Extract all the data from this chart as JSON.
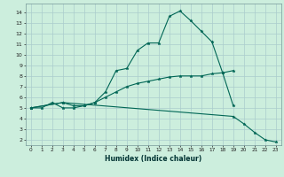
{
  "title": "",
  "xlabel": "Humidex (Indice chaleur)",
  "bg_color": "#cceedd",
  "grid_color": "#aacccc",
  "line_color": "#006655",
  "xlim": [
    -0.5,
    23.5
  ],
  "ylim": [
    1.5,
    14.8
  ],
  "xticks": [
    0,
    1,
    2,
    3,
    4,
    5,
    6,
    7,
    8,
    9,
    10,
    11,
    12,
    13,
    14,
    15,
    16,
    17,
    18,
    19,
    20,
    21,
    22,
    23
  ],
  "yticks": [
    2,
    3,
    4,
    5,
    6,
    7,
    8,
    9,
    10,
    11,
    12,
    13,
    14
  ],
  "line1_x": [
    0,
    1,
    2,
    3,
    4,
    5,
    6,
    7,
    8,
    9,
    10,
    11,
    12,
    13,
    14,
    15,
    16,
    17,
    18,
    19
  ],
  "line1_y": [
    5.0,
    5.0,
    5.5,
    5.0,
    5.0,
    5.2,
    5.5,
    6.5,
    8.5,
    8.7,
    10.4,
    11.1,
    11.1,
    13.6,
    14.1,
    13.2,
    12.2,
    11.2,
    8.3,
    5.2
  ],
  "line2_x": [
    0,
    3,
    4,
    5,
    6,
    7,
    8,
    9,
    10,
    11,
    12,
    13,
    14,
    15,
    16,
    17,
    18,
    19
  ],
  "line2_y": [
    5.0,
    5.5,
    5.2,
    5.2,
    5.5,
    6.0,
    6.5,
    7.0,
    7.3,
    7.5,
    7.7,
    7.9,
    8.0,
    8.0,
    8.0,
    8.2,
    8.3,
    8.5
  ],
  "line3_x": [
    0,
    3,
    19,
    20,
    21,
    22,
    23
  ],
  "line3_y": [
    5.0,
    5.5,
    4.2,
    3.5,
    2.7,
    2.0,
    1.8
  ]
}
